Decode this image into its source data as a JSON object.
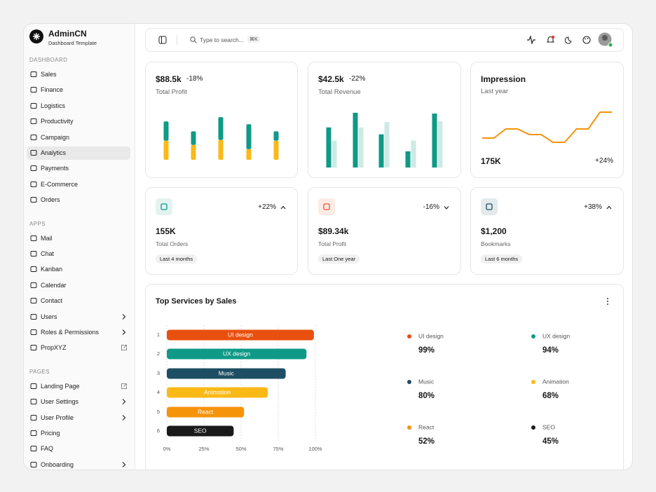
{
  "sidebar": {
    "brand": "AdminCN",
    "tagline": "Dashboard Template",
    "sections": [
      {
        "title": "DASHBOARD",
        "items": [
          {
            "label": "Sales"
          },
          {
            "label": "Finance"
          },
          {
            "label": "Logistics"
          },
          {
            "label": "Productivity"
          },
          {
            "label": "Campaign"
          },
          {
            "label": "Analytics",
            "active": true
          },
          {
            "label": "Payments"
          },
          {
            "label": "E-Commerce"
          },
          {
            "label": "Orders"
          }
        ]
      },
      {
        "title": "APPS",
        "items": [
          {
            "label": "Mail"
          },
          {
            "label": "Chat"
          },
          {
            "label": "Kanban"
          },
          {
            "label": "Calendar"
          },
          {
            "label": "Contact"
          },
          {
            "label": "Users",
            "trailing": "chevron"
          },
          {
            "label": "Roles & Permissions",
            "trailing": "chevron"
          },
          {
            "label": "PropXYZ",
            "trailing": "external"
          }
        ]
      },
      {
        "title": "PAGES",
        "items": [
          {
            "label": "Landing Page",
            "trailing": "external"
          },
          {
            "label": "User Settings",
            "trailing": "chevron"
          },
          {
            "label": "User Profile",
            "trailing": "chevron"
          },
          {
            "label": "Pricing"
          },
          {
            "label": "FAQ"
          },
          {
            "label": "Onboarding",
            "trailing": "chevron"
          }
        ]
      }
    ]
  },
  "topbar": {
    "search_placeholder": "Type to search...",
    "shortcut": "⌘K"
  },
  "cards": [
    {
      "value": "$88.5k",
      "change": "-18%",
      "label": "Total Profit"
    },
    {
      "value": "$42.5k",
      "change": "-22%",
      "label": "Total Revenue"
    },
    {
      "title": "Impression",
      "subtitle": "Last year",
      "value": "175K",
      "change": "+24%"
    }
  ],
  "stats": [
    {
      "change": "+22%",
      "trend": "up",
      "value": "155K",
      "label": "Total Orders",
      "period": "Last 4 months",
      "color": "#0f9a87"
    },
    {
      "change": "-16%",
      "trend": "down",
      "value": "$89.34k",
      "label": "Total Profit",
      "period": "Last One year",
      "color": "#e8572a"
    },
    {
      "change": "+38%",
      "trend": "up",
      "value": "$1,200",
      "label": "Bookmarks",
      "period": "Last 6 months",
      "color": "#1d4e63"
    }
  ],
  "services_title": "Top Services by Sales",
  "chart_data": [
    {
      "type": "stacked-bar",
      "ylim": [
        0,
        70
      ],
      "series": [
        {
          "color": "#fbb917",
          "values": [
            27,
            21,
            28,
            15,
            27
          ]
        },
        {
          "color": "#0f9a87",
          "values": [
            27,
            19,
            32,
            35,
            13
          ]
        }
      ]
    },
    {
      "type": "grouped-bar",
      "ylim": [
        0,
        80
      ],
      "series": [
        {
          "color": "#0f9a87",
          "values": [
            52,
            71,
            43,
            21,
            70
          ]
        },
        {
          "color": "#cdeae4",
          "values": [
            35,
            52,
            59,
            35,
            60
          ]
        }
      ]
    },
    {
      "type": "line",
      "ylim": [
        0,
        60
      ],
      "color": "#f5930b",
      "values": [
        14,
        14,
        27,
        27,
        19,
        19,
        8,
        8,
        27,
        27,
        51,
        51
      ]
    },
    {
      "type": "hbar",
      "ranks": [
        "1",
        "2",
        "3",
        "4",
        "5",
        "6"
      ],
      "categories": [
        "UI design",
        "UX design",
        "Music",
        "Animation",
        "React",
        "SEO"
      ],
      "values": [
        99,
        94,
        80,
        68,
        52,
        45
      ],
      "value_labels": [
        "99%",
        "94%",
        "80%",
        "68%",
        "52%",
        "45%"
      ],
      "colors": [
        "#e8500e",
        "#0f9a87",
        "#1d4e63",
        "#fbb917",
        "#f5930b",
        "#1a1a1a"
      ],
      "xlim": [
        0,
        100
      ],
      "xticks": [
        {
          "value": 0,
          "label": "0%"
        },
        {
          "value": 25,
          "label": "25%"
        },
        {
          "value": 50,
          "label": "50%"
        },
        {
          "value": 75,
          "label": "75%"
        },
        {
          "value": 100,
          "label": "100%"
        }
      ],
      "grid": true
    }
  ]
}
